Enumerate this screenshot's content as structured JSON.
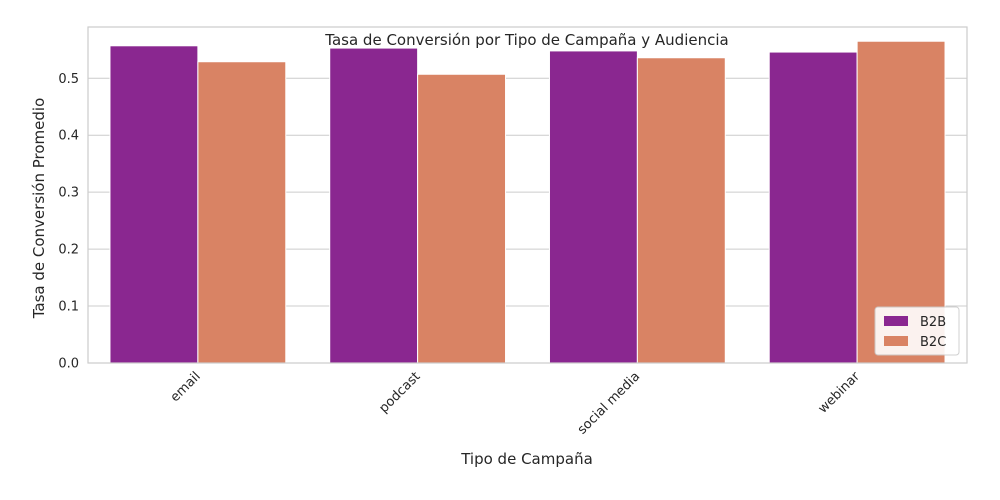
{
  "chart_data": {
    "type": "bar",
    "title": "Tasa de Conversión por Tipo de Campaña y Audiencia",
    "xlabel": "Tipo de Campaña",
    "ylabel": "Tasa de Conversión Promedio",
    "categories": [
      "email",
      "podcast",
      "social media",
      "webinar"
    ],
    "series": [
      {
        "name": "B2B",
        "color": "#8a2790",
        "values": [
          0.557,
          0.553,
          0.548,
          0.546
        ]
      },
      {
        "name": "B2C",
        "color": "#d98364",
        "values": [
          0.529,
          0.507,
          0.536,
          0.565
        ]
      }
    ],
    "ylim": [
      0,
      0.59
    ],
    "yticks": [
      "0.0",
      "0.1",
      "0.2",
      "0.3",
      "0.4",
      "0.5"
    ],
    "grid": true,
    "legend_position": "bottom-right"
  }
}
